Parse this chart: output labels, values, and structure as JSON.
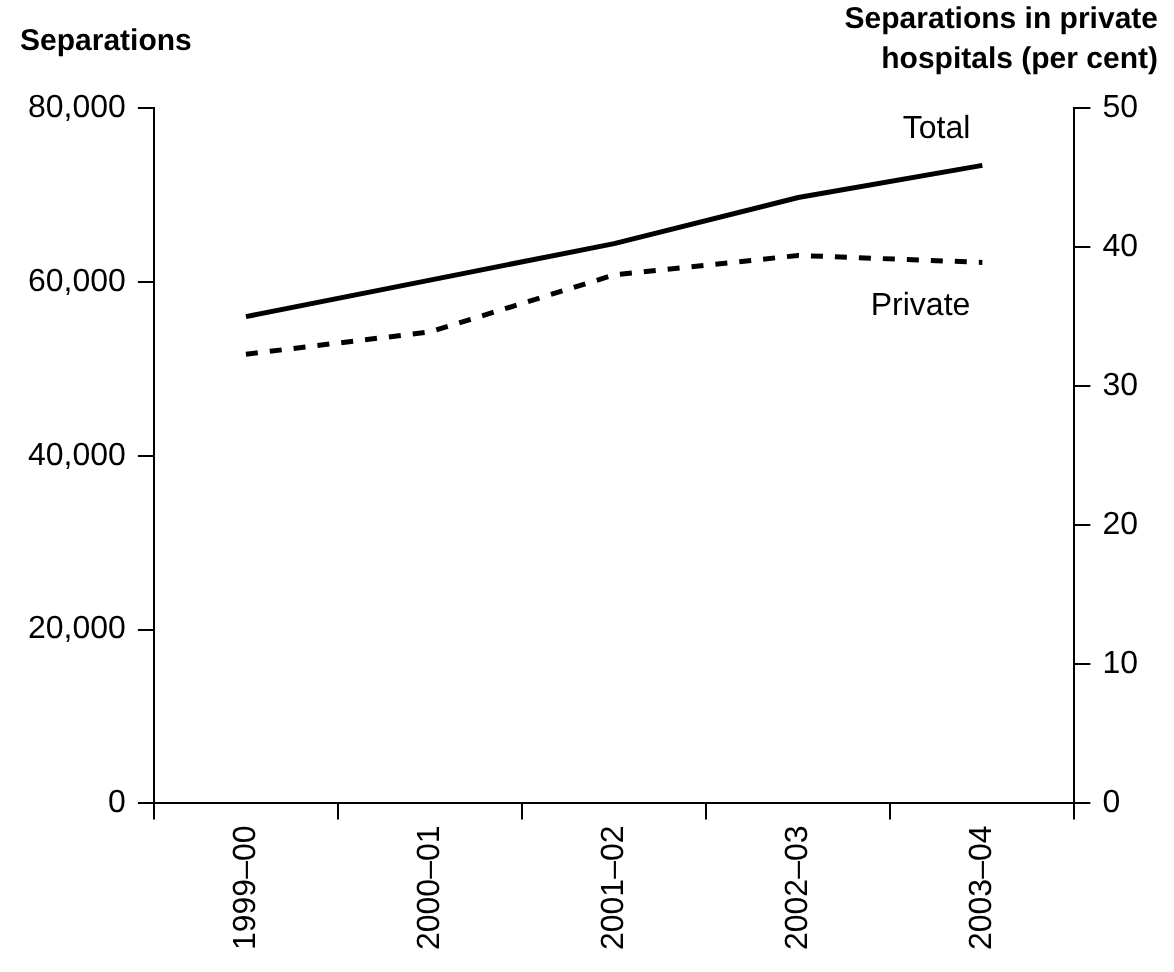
{
  "chart_data": {
    "type": "line",
    "ylabel": "Separations",
    "y2label": "Separations in private hospitals (per cent)",
    "categories": [
      "1999–00",
      "2000–01",
      "2001–02",
      "2002–03",
      "2003–04"
    ],
    "series": [
      {
        "name": "Total",
        "color": "#000000",
        "values": [
          56000,
          60200,
          64400,
          69700,
          73400
        ]
      },
      {
        "name": "Private",
        "color": "#000000",
        "axis": "y2",
        "line_style": "dashed",
        "values": [
          32.3,
          33.9,
          38.0,
          39.4,
          38.9
        ]
      }
    ],
    "ylim": [
      0,
      80000
    ],
    "yticks": [
      {
        "value": 0,
        "label": "0"
      },
      {
        "value": 20000,
        "label": "20,000"
      },
      {
        "value": 40000,
        "label": "40,000"
      },
      {
        "value": 60000,
        "label": "60,000"
      },
      {
        "value": 80000,
        "label": "80,000"
      }
    ],
    "y2lim": [
      0,
      50
    ],
    "y2ticks": [
      0,
      10,
      20,
      30,
      40,
      50
    ],
    "legend": false,
    "grid": false,
    "marker": "none"
  }
}
